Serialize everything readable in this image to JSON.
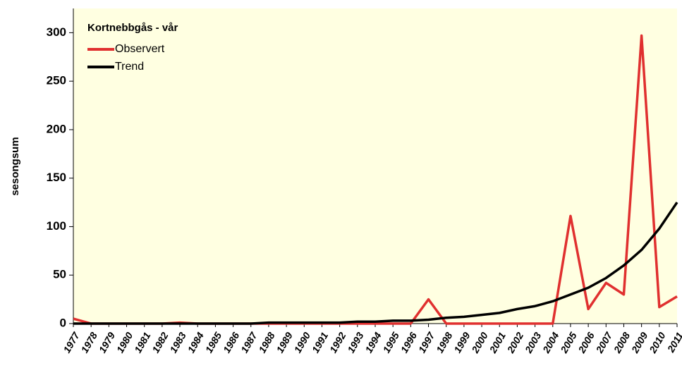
{
  "chart_data": {
    "type": "line",
    "legend_title": "Kortnebbgås - vår",
    "y_label": "sesongsum",
    "categories": [
      "1977",
      "1978",
      "1979",
      "1980",
      "1981",
      "1982",
      "1983",
      "1984",
      "1985",
      "1986",
      "1987",
      "1988",
      "1989",
      "1990",
      "1991",
      "1992",
      "1993",
      "1994",
      "1995",
      "1996",
      "1997",
      "1998",
      "1999",
      "2000",
      "2001",
      "2002",
      "2003",
      "2004",
      "2005",
      "2006",
      "2007",
      "2008",
      "2009",
      "2010",
      "2011"
    ],
    "series": [
      {
        "name": "Observert",
        "color": "#e0302f",
        "values": [
          5,
          0,
          0,
          0,
          0,
          0,
          1,
          0,
          0,
          0,
          0,
          0,
          0,
          0,
          0,
          0,
          0,
          0,
          0,
          0,
          25,
          0,
          0,
          0,
          0,
          0,
          0,
          0,
          111,
          15,
          42,
          30,
          297,
          17,
          28
        ]
      },
      {
        "name": "Trend",
        "color": "#000000",
        "values": [
          0,
          0,
          0,
          0,
          0,
          0,
          0,
          0,
          0,
          0,
          0,
          1,
          1,
          1,
          1,
          1,
          2,
          2,
          3,
          3,
          4,
          6,
          7,
          9,
          11,
          15,
          18,
          23,
          30,
          37,
          47,
          60,
          76,
          98,
          125
        ]
      }
    ],
    "ylim": [
      0,
      325
    ],
    "yticks": [
      0,
      50,
      100,
      150,
      200,
      250,
      300
    ],
    "legend": "upper left",
    "background": "#ffffe1"
  }
}
